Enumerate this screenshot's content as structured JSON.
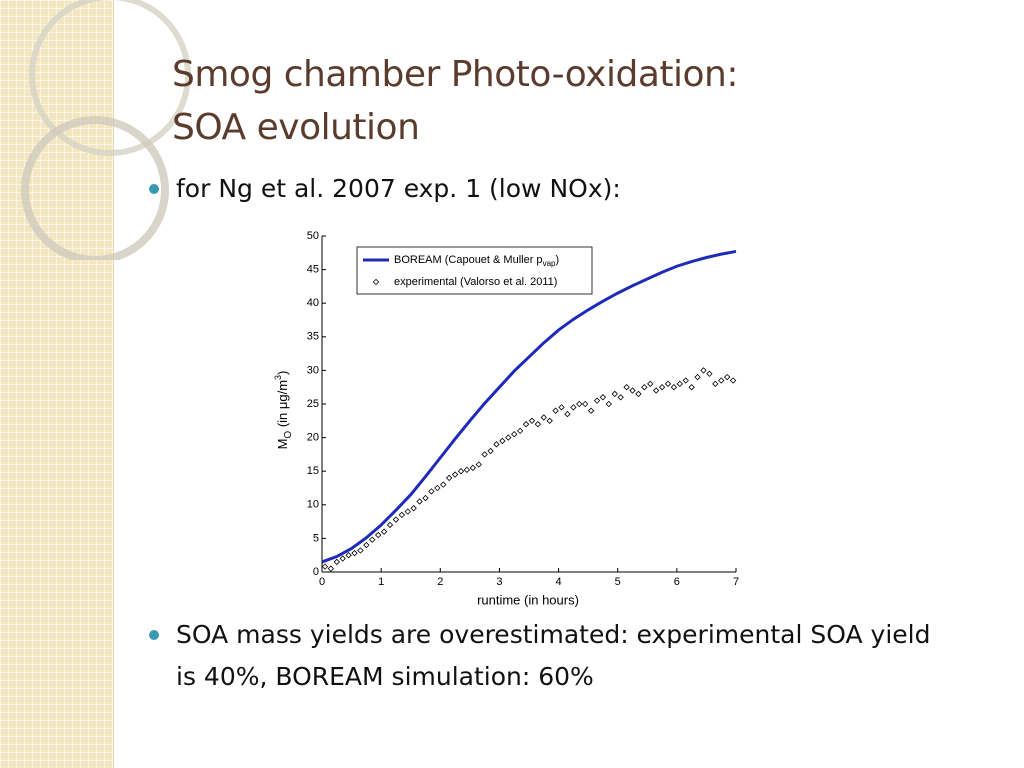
{
  "title": [
    "Smog chamber Photo-oxidation:",
    "SOA evolution"
  ],
  "bullets": [
    "for Ng et al. 2007 exp. 1 (low NOx):",
    "SOA mass yields are overestimated: experimental SOA yield is 40%, BOREAM simulation: 60%"
  ],
  "chart_data": {
    "type": "line",
    "xlabel": "runtime (in hours)",
    "ylabel": [
      "M",
      "O",
      " (in μg/m",
      "3",
      ")"
    ],
    "xlim": [
      0,
      7
    ],
    "xticks": [
      0,
      1,
      2,
      3,
      4,
      5,
      6,
      7
    ],
    "ylim": [
      0,
      50
    ],
    "yticks": [
      0,
      5,
      10,
      15,
      20,
      25,
      30,
      35,
      40,
      45,
      50
    ],
    "legend": "upper-left",
    "series": [
      {
        "name": [
          "BOREAM (Capouet & Muller p",
          "vap",
          ")"
        ],
        "color": "#1f2bb8",
        "style": "line",
        "x": [
          0,
          0.25,
          0.5,
          0.75,
          1,
          1.25,
          1.5,
          1.75,
          2,
          2.25,
          2.5,
          2.75,
          3,
          3.25,
          3.5,
          3.75,
          4,
          4.25,
          4.5,
          4.75,
          5,
          5.25,
          5.5,
          5.75,
          6,
          6.25,
          6.5,
          6.75,
          7
        ],
        "values": [
          1.5,
          2.3,
          3.5,
          5.1,
          7,
          9.2,
          11.5,
          14.2,
          17,
          19.8,
          22.5,
          25.1,
          27.5,
          29.9,
          32,
          34.1,
          36,
          37.6,
          39,
          40.3,
          41.5,
          42.6,
          43.6,
          44.6,
          45.5,
          46.2,
          46.8,
          47.3,
          47.7
        ]
      },
      {
        "name": [
          "experimental (Valorso et al. 2011)"
        ],
        "color": "#000000",
        "style": "markers",
        "x": [
          0.05,
          0.15,
          0.25,
          0.35,
          0.45,
          0.55,
          0.65,
          0.75,
          0.85,
          0.95,
          1.05,
          1.15,
          1.25,
          1.35,
          1.45,
          1.55,
          1.65,
          1.75,
          1.85,
          1.95,
          2.05,
          2.15,
          2.25,
          2.35,
          2.45,
          2.55,
          2.65,
          2.75,
          2.85,
          2.95,
          3.05,
          3.15,
          3.25,
          3.35,
          3.45,
          3.55,
          3.65,
          3.75,
          3.85,
          3.95,
          4.05,
          4.15,
          4.25,
          4.35,
          4.45,
          4.55,
          4.65,
          4.75,
          4.85,
          4.95,
          5.05,
          5.15,
          5.25,
          5.35,
          5.45,
          5.55,
          5.65,
          5.75,
          5.85,
          5.95,
          6.05,
          6.15,
          6.25,
          6.35,
          6.45,
          6.55,
          6.65,
          6.75,
          6.85,
          6.95
        ],
        "values": [
          0.8,
          0.5,
          1.5,
          2,
          2.5,
          2.8,
          3.2,
          4,
          4.8,
          5.5,
          6,
          7,
          7.8,
          8.5,
          9,
          9.5,
          10.5,
          11,
          12,
          12.5,
          13,
          14,
          14.5,
          15,
          15.2,
          15.5,
          16,
          17.5,
          18,
          19,
          19.5,
          20,
          20.5,
          21,
          22,
          22.5,
          22,
          23,
          22.5,
          24,
          24.5,
          23.5,
          24.5,
          25,
          25,
          24,
          25.5,
          26,
          25,
          26.5,
          26,
          27.5,
          27,
          26.5,
          27.5,
          28,
          27,
          27.5,
          28,
          27.5,
          28,
          28.5,
          27.5,
          29,
          30,
          29.5,
          28,
          28.5,
          29,
          28.5
        ]
      }
    ]
  }
}
